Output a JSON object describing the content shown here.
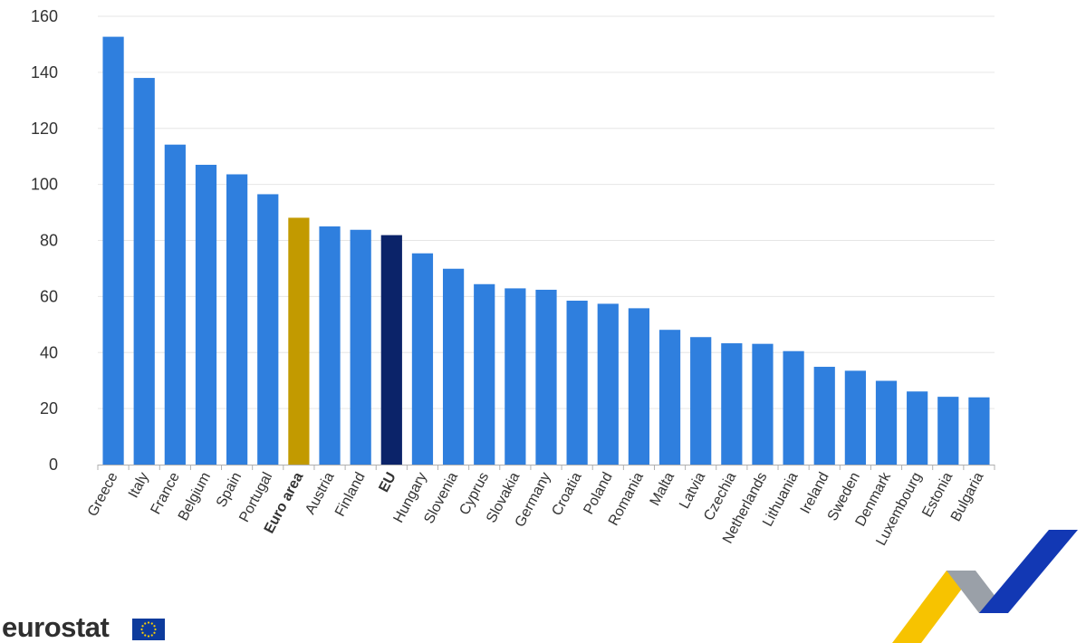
{
  "chart_data": {
    "type": "bar",
    "categories": [
      "Greece",
      "Italy",
      "France",
      "Belgium",
      "Spain",
      "Portugal",
      "Euro area",
      "Austria",
      "Finland",
      "EU",
      "Hungary",
      "Slovenia",
      "Cyprus",
      "Slovakia",
      "Germany",
      "Croatia",
      "Poland",
      "Romania",
      "Malta",
      "Latvia",
      "Czechia",
      "Netherlands",
      "Lithuania",
      "Ireland",
      "Sweden",
      "Denmark",
      "Luxembourg",
      "Estonia",
      "Bulgaria"
    ],
    "values": [
      152.7,
      138.0,
      114.2,
      107.0,
      103.6,
      96.5,
      88.1,
      85.0,
      83.8,
      81.9,
      75.4,
      69.9,
      64.4,
      62.9,
      62.4,
      58.5,
      57.4,
      55.8,
      48.1,
      45.5,
      43.3,
      43.1,
      40.5,
      34.9,
      33.5,
      29.9,
      26.1,
      24.2,
      24.0
    ],
    "highlight": {
      "Euro area": "#c29a00",
      "EU": "#0b2369"
    },
    "bold_categories": [
      "Euro area",
      "EU"
    ],
    "bar_color": "#2f7fde",
    "y_ticks": [
      0,
      20,
      40,
      60,
      80,
      100,
      120,
      140,
      160
    ],
    "ylim": [
      0,
      160
    ],
    "grid": true,
    "title": "",
    "xlabel": "",
    "ylabel": ""
  },
  "branding": {
    "logo_text": "eurostat",
    "logo_icon": "eu-flag-icon",
    "brand_mark_icon": "eurostat-chevron-icon"
  }
}
